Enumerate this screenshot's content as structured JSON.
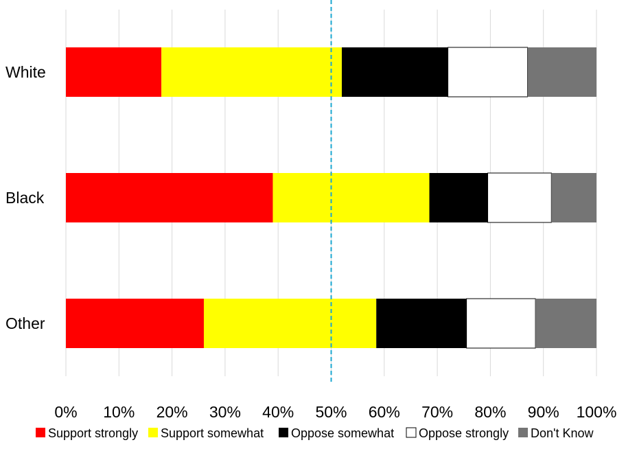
{
  "chart_data": {
    "type": "bar",
    "orientation": "horizontal",
    "stacked": "percent",
    "categories": [
      "White",
      "Black",
      "Other"
    ],
    "series": [
      {
        "name": "Support strongly",
        "color": "#FF0000",
        "values": [
          18,
          39,
          26
        ]
      },
      {
        "name": "Support somewhat",
        "color": "#FFFF00",
        "values": [
          34,
          29.5,
          32.5
        ]
      },
      {
        "name": "Oppose somewhat",
        "color": "#000000",
        "values": [
          20,
          11,
          17
        ]
      },
      {
        "name": "Oppose strongly",
        "color": "#FFFFFF",
        "values": [
          15,
          12,
          13
        ]
      },
      {
        "name": "Don't Know",
        "color": "#757575",
        "values": [
          13,
          8.5,
          11.5
        ]
      }
    ],
    "xlim": [
      0,
      100
    ],
    "x_ticks": [
      "0%",
      "10%",
      "20%",
      "30%",
      "40%",
      "50%",
      "60%",
      "70%",
      "80%",
      "90%",
      "100%"
    ],
    "reference_line": {
      "x": 50,
      "style": "dashed",
      "color": "#1BA7D0"
    },
    "grid": "vertical",
    "legend_position": "bottom"
  }
}
